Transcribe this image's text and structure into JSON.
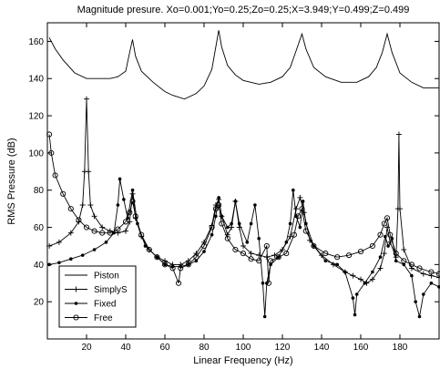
{
  "chart_data": {
    "type": "line",
    "title": "Magnitude presure. Xo=0.001;Yo=0.25;Zo=0.25;X=3.949;Y=0.499;Z=0.499",
    "xlabel": "Linear Frequency (Hz)",
    "ylabel": "RMS Pressure (dB)",
    "xlim": [
      0,
      200
    ],
    "ylim": [
      0,
      170
    ],
    "xticks": [
      20,
      40,
      60,
      80,
      100,
      120,
      140,
      160,
      180
    ],
    "yticks": [
      20,
      40,
      60,
      80,
      100,
      120,
      140,
      160
    ],
    "grid": false,
    "legend": "bottom-left",
    "series": [
      {
        "name": "Piston",
        "marker": "none",
        "points": [
          [
            1,
            162
          ],
          [
            4,
            156
          ],
          [
            8,
            150
          ],
          [
            14,
            143
          ],
          [
            20,
            140
          ],
          [
            26,
            140
          ],
          [
            32,
            140
          ],
          [
            36,
            141
          ],
          [
            40,
            144
          ],
          [
            42,
            154
          ],
          [
            43.5,
            161
          ],
          [
            45,
            152
          ],
          [
            48,
            144
          ],
          [
            54,
            138
          ],
          [
            60,
            133
          ],
          [
            64,
            131
          ],
          [
            70,
            129
          ],
          [
            76,
            132
          ],
          [
            80,
            136
          ],
          [
            84,
            145
          ],
          [
            86,
            157
          ],
          [
            87.5,
            166
          ],
          [
            89,
            157
          ],
          [
            92,
            147
          ],
          [
            96,
            142
          ],
          [
            100,
            139
          ],
          [
            108,
            137
          ],
          [
            114,
            138
          ],
          [
            120,
            141
          ],
          [
            124,
            146
          ],
          [
            127,
            155
          ],
          [
            130,
            164
          ],
          [
            132,
            156
          ],
          [
            136,
            146
          ],
          [
            142,
            141
          ],
          [
            150,
            138
          ],
          [
            158,
            138
          ],
          [
            164,
            141
          ],
          [
            168,
            146
          ],
          [
            171,
            154
          ],
          [
            173.5,
            164
          ],
          [
            176,
            154
          ],
          [
            180,
            143
          ],
          [
            186,
            138
          ],
          [
            192,
            135
          ],
          [
            200,
            135
          ]
        ]
      },
      {
        "name": "SimplyS",
        "marker": "plus",
        "points": [
          [
            1,
            50
          ],
          [
            6,
            52
          ],
          [
            12,
            57
          ],
          [
            16,
            63
          ],
          [
            18,
            72
          ],
          [
            19,
            90
          ],
          [
            20,
            129
          ],
          [
            21,
            90
          ],
          [
            22,
            72
          ],
          [
            24,
            66
          ],
          [
            28,
            60
          ],
          [
            32,
            58
          ],
          [
            36,
            57
          ],
          [
            40,
            58
          ],
          [
            42,
            63
          ],
          [
            43.5,
            78
          ],
          [
            45,
            65
          ],
          [
            48,
            55
          ],
          [
            52,
            48
          ],
          [
            56,
            44
          ],
          [
            60,
            42
          ],
          [
            64,
            40
          ],
          [
            68,
            40
          ],
          [
            72,
            42
          ],
          [
            76,
            46
          ],
          [
            80,
            52
          ],
          [
            84,
            61
          ],
          [
            86,
            72
          ],
          [
            87.5,
            75
          ],
          [
            89,
            66
          ],
          [
            92,
            56
          ],
          [
            94,
            60
          ],
          [
            96,
            74
          ],
          [
            98,
            60
          ],
          [
            100,
            50
          ],
          [
            104,
            46
          ],
          [
            108,
            45
          ],
          [
            112,
            44
          ],
          [
            116,
            45
          ],
          [
            120,
            48
          ],
          [
            124,
            55
          ],
          [
            127,
            70
          ],
          [
            129,
            76
          ],
          [
            131,
            68
          ],
          [
            134,
            53
          ],
          [
            140,
            45
          ],
          [
            146,
            40
          ],
          [
            152,
            36
          ],
          [
            156,
            34
          ],
          [
            160,
            32
          ],
          [
            163,
            30
          ],
          [
            166,
            32
          ],
          [
            170,
            38
          ],
          [
            172,
            46
          ],
          [
            173.5,
            60
          ],
          [
            175,
            52
          ],
          [
            178,
            44
          ],
          [
            179,
            70
          ],
          [
            179.5,
            110
          ],
          [
            180,
            70
          ],
          [
            182,
            48
          ],
          [
            186,
            38
          ],
          [
            192,
            35
          ],
          [
            196,
            34
          ],
          [
            200,
            33
          ]
        ]
      },
      {
        "name": "Fixed",
        "marker": "dot",
        "points": [
          [
            1,
            40
          ],
          [
            6,
            41
          ],
          [
            12,
            43
          ],
          [
            18,
            45
          ],
          [
            24,
            48
          ],
          [
            30,
            52
          ],
          [
            34,
            57
          ],
          [
            36,
            72
          ],
          [
            37,
            86
          ],
          [
            39,
            75
          ],
          [
            41,
            65
          ],
          [
            43.5,
            80
          ],
          [
            46,
            62
          ],
          [
            50,
            50
          ],
          [
            56,
            44
          ],
          [
            60,
            40
          ],
          [
            64,
            39
          ],
          [
            68,
            39
          ],
          [
            72,
            40
          ],
          [
            76,
            42
          ],
          [
            80,
            47
          ],
          [
            84,
            56
          ],
          [
            86,
            66
          ],
          [
            87.5,
            76
          ],
          [
            89,
            66
          ],
          [
            92,
            60
          ],
          [
            94,
            62
          ],
          [
            96,
            74
          ],
          [
            98,
            62
          ],
          [
            102,
            52
          ],
          [
            104,
            62
          ],
          [
            106,
            72
          ],
          [
            108,
            54
          ],
          [
            110,
            30
          ],
          [
            111,
            12
          ],
          [
            112,
            30
          ],
          [
            114,
            40
          ],
          [
            118,
            44
          ],
          [
            122,
            52
          ],
          [
            124,
            62
          ],
          [
            125.5,
            80
          ],
          [
            127,
            66
          ],
          [
            129,
            60
          ],
          [
            130.5,
            74
          ],
          [
            132,
            62
          ],
          [
            136,
            50
          ],
          [
            142,
            42
          ],
          [
            148,
            40
          ],
          [
            152,
            36
          ],
          [
            156,
            22
          ],
          [
            157,
            13
          ],
          [
            158,
            24
          ],
          [
            162,
            30
          ],
          [
            166,
            36
          ],
          [
            170,
            44
          ],
          [
            172.5,
            55
          ],
          [
            174,
            50
          ],
          [
            176,
            54
          ],
          [
            178,
            42
          ],
          [
            182,
            40
          ],
          [
            186,
            34
          ],
          [
            188,
            20
          ],
          [
            190,
            12
          ],
          [
            192,
            24
          ],
          [
            196,
            30
          ],
          [
            200,
            28
          ]
        ]
      },
      {
        "name": "Free",
        "marker": "circle",
        "points": [
          [
            1,
            110
          ],
          [
            2,
            100
          ],
          [
            4,
            88
          ],
          [
            8,
            78
          ],
          [
            12,
            70
          ],
          [
            16,
            64
          ],
          [
            20,
            60
          ],
          [
            24,
            58
          ],
          [
            28,
            57
          ],
          [
            32,
            57
          ],
          [
            36,
            59
          ],
          [
            40,
            63
          ],
          [
            42,
            68
          ],
          [
            43.5,
            74
          ],
          [
            45,
            66
          ],
          [
            48,
            56
          ],
          [
            52,
            48
          ],
          [
            56,
            44
          ],
          [
            60,
            40
          ],
          [
            64,
            38
          ],
          [
            67,
            30
          ],
          [
            68,
            38
          ],
          [
            72,
            40
          ],
          [
            76,
            44
          ],
          [
            80,
            50
          ],
          [
            84,
            60
          ],
          [
            86,
            70
          ],
          [
            87.5,
            72
          ],
          [
            89,
            62
          ],
          [
            92,
            54
          ],
          [
            96,
            48
          ],
          [
            100,
            46
          ],
          [
            104,
            43
          ],
          [
            108,
            42
          ],
          [
            112,
            50
          ],
          [
            113,
            30
          ],
          [
            114,
            42
          ],
          [
            118,
            44
          ],
          [
            122,
            46
          ],
          [
            126,
            56
          ],
          [
            128,
            66
          ],
          [
            130,
            70
          ],
          [
            132,
            58
          ],
          [
            136,
            50
          ],
          [
            142,
            46
          ],
          [
            148,
            44
          ],
          [
            154,
            45
          ],
          [
            160,
            47
          ],
          [
            166,
            50
          ],
          [
            170,
            56
          ],
          [
            172,
            62
          ],
          [
            173.5,
            65
          ],
          [
            175,
            56
          ],
          [
            178,
            46
          ],
          [
            182,
            42
          ],
          [
            186,
            40
          ],
          [
            190,
            38
          ],
          [
            196,
            36
          ],
          [
            200,
            35
          ]
        ]
      }
    ]
  }
}
